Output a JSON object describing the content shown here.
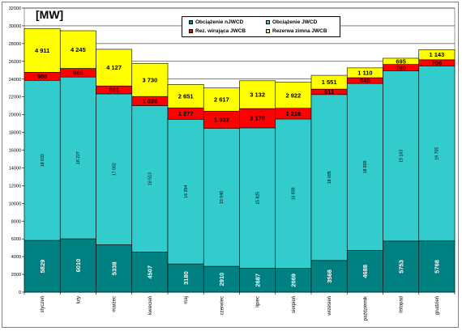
{
  "chart_data": {
    "type": "bar",
    "stacked": true,
    "title": "[MW]",
    "categories": [
      "styczeń",
      "luty",
      "marzec",
      "kwiecień",
      "maj",
      "czerwiec",
      "lipiec",
      "sierpień",
      "wrzesień",
      "październik",
      "listopad",
      "grudzień"
    ],
    "ylim": [
      0,
      32000
    ],
    "yticks": [
      0,
      2000,
      4000,
      6000,
      8000,
      10000,
      12000,
      14000,
      16000,
      18000,
      20000,
      22000,
      24000,
      26000,
      28000,
      30000,
      32000
    ],
    "grid": true,
    "legend_position": "top-center",
    "series": [
      {
        "name": "Obciążenie nJWCD",
        "color": "#008080",
        "values": [
          5829,
          6010,
          5338,
          4507,
          3180,
          2910,
          2687,
          2669,
          3568,
          4688,
          5753,
          5768
        ],
        "labels": [
          "5829",
          "6010",
          "5338",
          "4507",
          "3180",
          "2910",
          "2687",
          "2669",
          "3568",
          "4688",
          "5753",
          "5768"
        ]
      },
      {
        "name": "Obciążenie JWCD",
        "color": "#33CCCC",
        "values": [
          18032,
          18227,
          17002,
          16513,
          16294,
          15540,
          15825,
          16839,
          18695,
          18820,
          19163,
          19705
        ],
        "labels": [
          "18 032",
          "18 227",
          "17 002",
          "16 513",
          "16 294",
          "15 540",
          "15 825",
          "16 839",
          "18 695",
          "18 820",
          "19 163",
          "19 705"
        ]
      },
      {
        "name": "Rez. wirująca JWCB",
        "color": "#FF0000",
        "values": [
          909,
          966,
          891,
          1026,
          1277,
          1932,
          2170,
          1216,
          611,
          648,
          740,
          706
        ],
        "labels": [
          "909",
          "966",
          "891",
          "1 026",
          "1 277",
          "1 932",
          "2 170",
          "1 216",
          "611",
          "648",
          "740",
          "706"
        ]
      },
      {
        "name": "Rezerwa zimna JWCB",
        "color": "#FFFF00",
        "values": [
          4911,
          4245,
          4127,
          3730,
          2651,
          2617,
          3132,
          2922,
          1551,
          1110,
          695,
          1143
        ],
        "labels": [
          "4 911",
          "4 245",
          "4 127",
          "3 730",
          "2 651",
          "2 617",
          "3 132",
          "2 922",
          "1 551",
          "1 110",
          "695",
          "1 143"
        ]
      }
    ]
  }
}
